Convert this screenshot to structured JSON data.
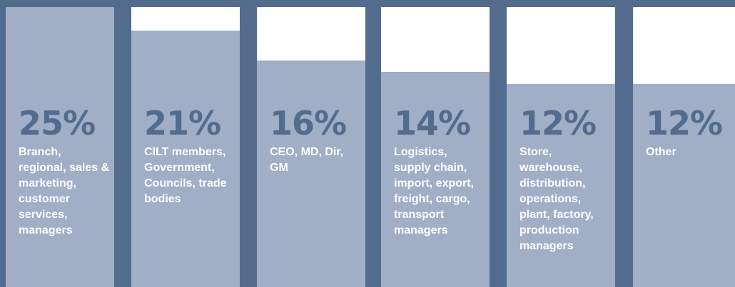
{
  "chart_data": {
    "type": "bar",
    "categories": [
      "Branch, regional, sales & marketing, customer services, managers",
      "CILT members, Government, Councils, trade bodies",
      "CEO, MD, Dir, GM",
      "Logistics, supply chain, import, export, freight, cargo, transport managers",
      "Store, warehouse, distribution, operations, plant, factory, production managers",
      "Other"
    ],
    "values": [
      25,
      21,
      16,
      14,
      12,
      12
    ],
    "value_labels": [
      "25%",
      "21%",
      "16%",
      "14%",
      "12%",
      "12%"
    ],
    "color": "#a0aec6"
  }
}
